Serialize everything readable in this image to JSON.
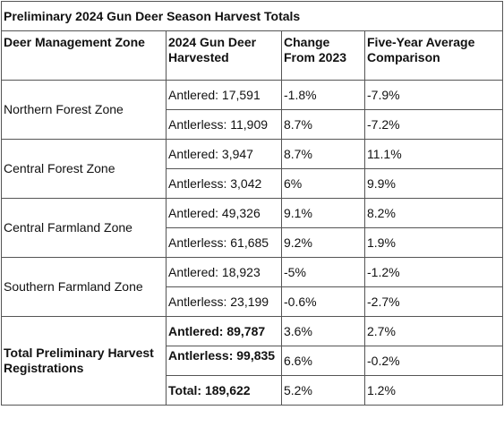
{
  "title": "Preliminary 2024 Gun Deer Season Harvest Totals",
  "table": {
    "header": [
      "Deer Management Zone",
      "2024 Gun Deer Harvested",
      "Change From 2023",
      "Five-Year Average Comparison"
    ],
    "groups": [
      {
        "zone": "Northern Forest Zone",
        "rows": [
          [
            "Antlered: 17,591",
            "-1.8%",
            "-7.9%"
          ],
          [
            "Antlerless: 11,909",
            "8.7%",
            "-7.2%"
          ]
        ]
      },
      {
        "zone": "Central Forest Zone",
        "rows": [
          [
            "Antlered: 3,947",
            "8.7%",
            "11.1%"
          ],
          [
            "Antlerless: 3,042",
            "6%",
            "9.9%"
          ]
        ]
      },
      {
        "zone": "Central Farmland Zone",
        "rows": [
          [
            "Antlered: 49,326",
            "9.1%",
            "8.2%"
          ],
          [
            "Antlerless: 61,685",
            "9.2%",
            "1.9%"
          ]
        ]
      },
      {
        "zone": "Southern Farmland Zone",
        "rows": [
          [
            "Antlered: 18,923",
            "-5%",
            "-1.2%"
          ],
          [
            "Antlerless: 23,199",
            "-0.6%",
            "-2.7%"
          ]
        ]
      },
      {
        "zone": "Total Preliminary Harvest Registrations",
        "rows": [
          [
            "Antlered: 89,787",
            "3.6%",
            "2.7%"
          ],
          [
            "Antlerless: 99,835",
            "6.6%",
            "-0.2%"
          ],
          [
            "Total: 189,622",
            "5.2%",
            "1.2%"
          ]
        ]
      }
    ]
  }
}
